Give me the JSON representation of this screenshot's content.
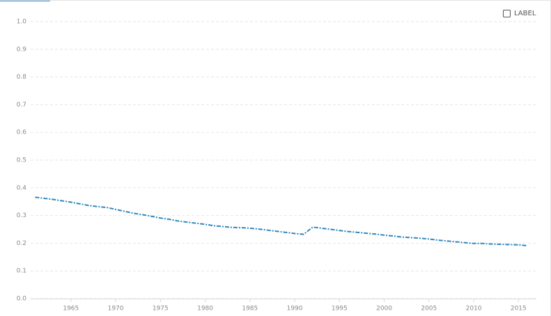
{
  "chart_data": {
    "type": "line",
    "x": [
      1961,
      1962,
      1963,
      1964,
      1965,
      1966,
      1967,
      1968,
      1969,
      1970,
      1971,
      1972,
      1973,
      1974,
      1975,
      1976,
      1977,
      1978,
      1979,
      1980,
      1981,
      1982,
      1983,
      1984,
      1985,
      1986,
      1987,
      1988,
      1989,
      1990,
      1991,
      1992,
      1993,
      1994,
      1995,
      1996,
      1997,
      1998,
      1999,
      2000,
      2001,
      2002,
      2003,
      2004,
      2005,
      2006,
      2007,
      2008,
      2009,
      2010,
      2011,
      2012,
      2013,
      2014,
      2015,
      2016
    ],
    "series": [
      {
        "name": "LABEL",
        "color": "#2f86bd",
        "values": [
          0.366,
          0.362,
          0.358,
          0.353,
          0.348,
          0.342,
          0.336,
          0.332,
          0.329,
          0.322,
          0.315,
          0.308,
          0.303,
          0.297,
          0.291,
          0.286,
          0.28,
          0.276,
          0.272,
          0.268,
          0.263,
          0.26,
          0.257,
          0.256,
          0.254,
          0.251,
          0.247,
          0.243,
          0.239,
          0.235,
          0.232,
          0.258,
          0.254,
          0.25,
          0.246,
          0.242,
          0.239,
          0.236,
          0.233,
          0.229,
          0.226,
          0.222,
          0.22,
          0.218,
          0.215,
          0.211,
          0.208,
          0.205,
          0.202,
          0.199,
          0.199,
          0.197,
          0.196,
          0.195,
          0.194,
          0.191
        ]
      }
    ],
    "xlim": [
      1960.5,
      2017
    ],
    "xticks": [
      1965,
      1970,
      1975,
      1980,
      1985,
      1990,
      1995,
      2000,
      2005,
      2010,
      2015
    ],
    "ylim": [
      0,
      1
    ],
    "yticks": [
      {
        "value": 0,
        "label": "0.0"
      },
      0.1,
      0.2,
      0.3,
      0.4,
      0.5,
      0.6,
      0.7,
      0.8,
      0.9,
      {
        "value": 1,
        "label": "1.0"
      }
    ],
    "grid": true
  }
}
